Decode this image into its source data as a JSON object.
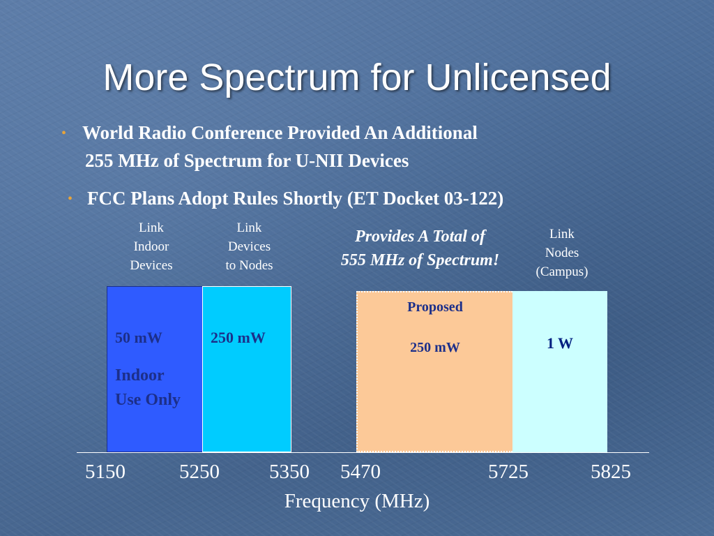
{
  "title": "More Spectrum for Unlicensed",
  "bullets": [
    {
      "line1": "World Radio Conference Provided An Additional",
      "line2": "255 MHz of Spectrum for U-NII Devices"
    },
    {
      "line1": "FCC Plans Adopt Rules Shortly (ET Docket 03-122)"
    }
  ],
  "bullet_symbol": "•",
  "total_note": {
    "line1": "Provides A Total of",
    "line2": "555 MHz of Spectrum!"
  },
  "bands": [
    {
      "start": 5150,
      "end": 5250,
      "color": "#2f5bff",
      "label": [
        "Link",
        "Indoor",
        "Devices"
      ],
      "power": "50 mW",
      "note": [
        "Indoor",
        "Use Only"
      ]
    },
    {
      "start": 5250,
      "end": 5350,
      "color": "#00ccff",
      "label": [
        "Link",
        "Devices",
        "to Nodes"
      ],
      "power": "250 mW"
    },
    {
      "start": 5470,
      "end": 5725,
      "color": "#fcc998",
      "status": "Proposed",
      "power": "250 mW"
    },
    {
      "start": 5725,
      "end": 5825,
      "color": "#ccffff",
      "label": [
        "Link",
        "Nodes",
        "(Campus)"
      ],
      "power": "1 W"
    }
  ],
  "axis": {
    "ticks": [
      "5150",
      "5250",
      "5350",
      "5470",
      "5725",
      "5825"
    ],
    "label": "Frequency (MHz)"
  },
  "colors": {
    "bullet_marker": "#e8a43a",
    "band_text": "#1c2f8a"
  }
}
